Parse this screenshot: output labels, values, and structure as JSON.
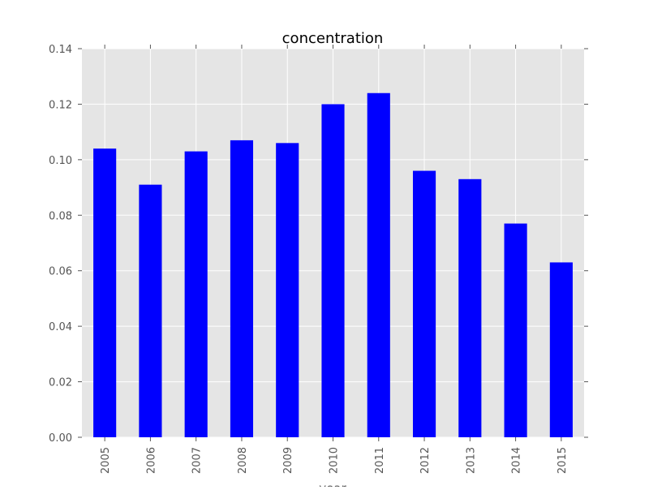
{
  "chart_data": {
    "type": "bar",
    "title": "concentration",
    "xlabel": "year",
    "ylabel": "",
    "categories": [
      "2005",
      "2006",
      "2007",
      "2008",
      "2009",
      "2010",
      "2011",
      "2012",
      "2013",
      "2014",
      "2015"
    ],
    "values": [
      0.104,
      0.091,
      0.103,
      0.107,
      0.106,
      0.12,
      0.124,
      0.096,
      0.093,
      0.077,
      0.063
    ],
    "ylim": [
      0,
      0.14
    ],
    "yticks": [
      "0.00",
      "0.02",
      "0.04",
      "0.06",
      "0.08",
      "0.10",
      "0.12",
      "0.14"
    ],
    "grid": true,
    "legend": "none",
    "colors": {
      "bar": "#0000ff",
      "plot_background": "#e5e5e5",
      "grid": "#ffffff",
      "text": "#555555",
      "title": "#000000"
    }
  }
}
